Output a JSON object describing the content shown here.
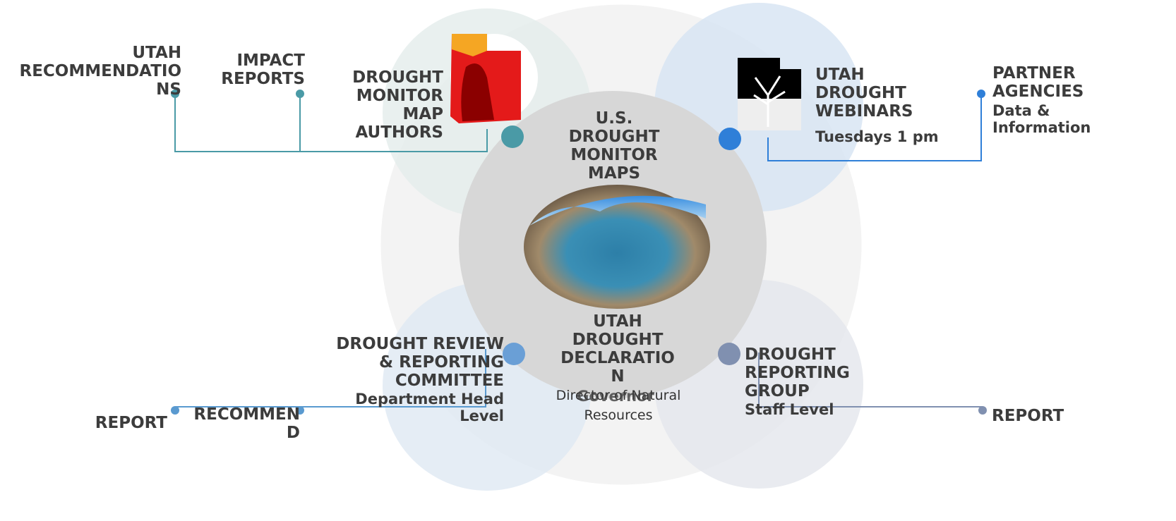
{
  "labels": [
    {
      "lines": [
        "UTAH",
        "RECOMMENDATIO",
        "NS"
      ]
    },
    {
      "lines": [
        "IMPACT",
        "REPORTS"
      ]
    },
    {
      "lines": [
        "DROUGHT",
        "MONITOR",
        "MAP",
        "AUTHORS"
      ]
    },
    {
      "lines": [
        "U.S.",
        "DROUGHT",
        "MONITOR",
        "MAPS"
      ]
    },
    {
      "lines": [
        "UTAH",
        "DROUGHT",
        "WEBINARS"
      ]
    },
    {
      "lines": [
        "Tuesdays 1 pm"
      ]
    },
    {
      "lines": [
        "PARTNER",
        "AGENCIES"
      ]
    },
    {
      "lines": [
        "Data &",
        "Information"
      ]
    },
    {
      "lines": [
        "DROUGHT REVIEW",
        "& REPORTING",
        "COMMITTEE"
      ]
    },
    {
      "lines": [
        "Department Head",
        "Level"
      ]
    },
    {
      "lines": [
        "UTAH",
        "DROUGHT",
        "DECLARATIO",
        "N"
      ]
    },
    {
      "lines": [
        "Director of Natural",
        "Resources"
      ]
    },
    {
      "lines": [
        "Governor"
      ]
    },
    {
      "lines": [
        "DROUGHT",
        "REPORTING",
        "GROUP"
      ]
    },
    {
      "lines": [
        "Staff Level"
      ]
    },
    {
      "lines": [
        "REPORT"
      ]
    },
    {
      "lines": [
        "RECOMMEN",
        "D"
      ]
    },
    {
      "lines": [
        "REPORT"
      ]
    }
  ]
}
